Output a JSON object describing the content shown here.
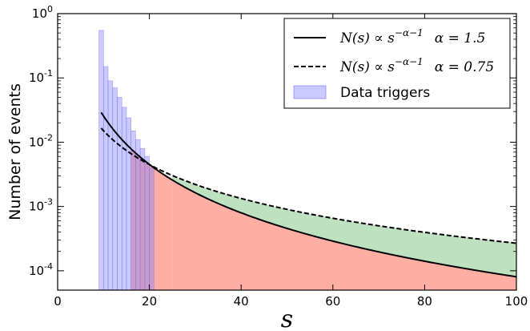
{
  "chart_data": {
    "type": "bar",
    "xlabel": "s",
    "ylabel": "Number of events",
    "xlim": [
      0,
      100
    ],
    "ylim": [
      5e-05,
      1
    ],
    "yscale": "log",
    "x_ticks": [
      "0",
      "20",
      "40",
      "60",
      "80",
      "100"
    ],
    "y_ticks": [
      {
        "base": "10",
        "exp": "0",
        "value": 1
      },
      {
        "base": "10",
        "exp": "-1",
        "value": 0.1
      },
      {
        "base": "10",
        "exp": "-2",
        "value": 0.01
      },
      {
        "base": "10",
        "exp": "-3",
        "value": 0.001
      },
      {
        "base": "10",
        "exp": "-4",
        "value": 0.0001
      }
    ],
    "legend_position": "top-right",
    "grid": false,
    "legend": [
      {
        "kind": "solid",
        "formula": "N(s) ∝ s",
        "sup": "−α−1",
        "param": "α = 1.5"
      },
      {
        "kind": "dashed",
        "formula": "N(s) ∝ s",
        "sup": "−α−1",
        "param": "α = 0.75"
      },
      {
        "kind": "patch",
        "label": "Data triggers"
      }
    ],
    "histogram": {
      "name": "Data triggers",
      "color": "#8080ff",
      "bins": [
        {
          "x0": 9,
          "x1": 10,
          "value": 0.55
        },
        {
          "x0": 10,
          "x1": 11,
          "value": 0.15
        },
        {
          "x0": 11,
          "x1": 12,
          "value": 0.09
        },
        {
          "x0": 12,
          "x1": 13,
          "value": 0.07
        },
        {
          "x0": 13,
          "x1": 14,
          "value": 0.05
        },
        {
          "x0": 14,
          "x1": 15,
          "value": 0.035
        },
        {
          "x0": 15,
          "x1": 16,
          "value": 0.024
        },
        {
          "x0": 16,
          "x1": 17,
          "value": 0.015
        },
        {
          "x0": 17,
          "x1": 18,
          "value": 0.011
        },
        {
          "x0": 18,
          "x1": 19,
          "value": 0.008
        },
        {
          "x0": 19,
          "x1": 20,
          "value": 0.006
        },
        {
          "x0": 20,
          "x1": 21,
          "value": 0.004
        }
      ]
    },
    "series": [
      {
        "alpha": 1.5,
        "style": "solid",
        "x_start": 9.5,
        "value_at_start": 0.029
      },
      {
        "alpha": 0.75,
        "style": "dashed",
        "x_start": 9.5,
        "value_at_start": 0.0165
      }
    ],
    "fills": [
      {
        "color": "#ff6b5a",
        "opacity": 0.55,
        "bounded_by": "alpha_1.5",
        "segments": [
          {
            "x0": 16,
            "x1": 21
          },
          {
            "x0": 21,
            "x1": 25
          },
          {
            "x0": 25,
            "x1": 100
          }
        ]
      },
      {
        "color": "#6fbf73",
        "opacity": 0.45,
        "between": [
          "alpha_1.5",
          "alpha_0.75"
        ],
        "x0": 25,
        "x1": 100
      }
    ]
  }
}
